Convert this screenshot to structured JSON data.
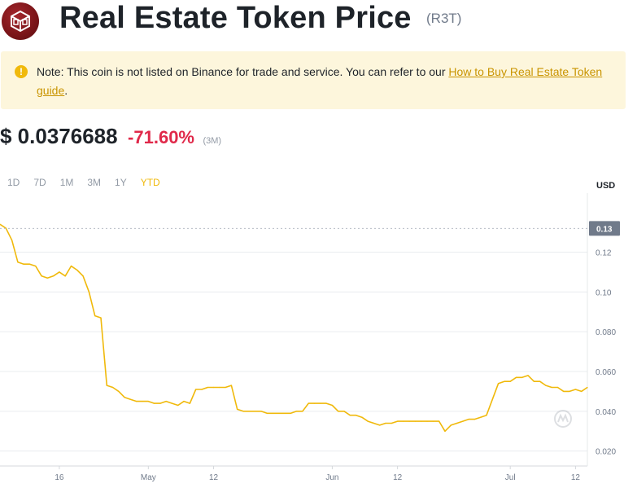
{
  "header": {
    "title": "Real Estate Token Price",
    "symbol": "(R3T)",
    "logo_icon": "r3t-cube-logo-icon"
  },
  "note": {
    "icon": "exclamation-circle-icon",
    "text": "Note: This coin is not listed on Binance for trade and service. You can refer to our ",
    "link_text": "How to Buy Real Estate Token guide",
    "suffix": "."
  },
  "price": {
    "value": "$ 0.0376688",
    "change": "-71.60%",
    "period": "(3M)"
  },
  "tabs": [
    {
      "label": "1D",
      "active": false
    },
    {
      "label": "7D",
      "active": false
    },
    {
      "label": "1M",
      "active": false
    },
    {
      "label": "3M",
      "active": false
    },
    {
      "label": "1Y",
      "active": false
    },
    {
      "label": "YTD",
      "active": true
    }
  ],
  "colors": {
    "line": "#f0b90b",
    "negative": "#e0294a",
    "accent": "#f0b90b",
    "grid": "#eaecef",
    "axis_text": "#707a8a"
  },
  "chart_data": {
    "type": "line",
    "currency_label": "USD",
    "current_price_label": "0.13",
    "y_ticks": [
      "0.12",
      "0.10",
      "0.080",
      "0.060",
      "0.040",
      "0.020"
    ],
    "y_tick_values": [
      0.12,
      0.1,
      0.08,
      0.06,
      0.04,
      0.02
    ],
    "ylim": [
      0.0125,
      0.1415
    ],
    "x_ticks": [
      "16",
      "May",
      "12",
      "Jun",
      "12",
      "Jul",
      "12"
    ],
    "x_tick_dates": [
      "2023-04-16",
      "2023-05-01",
      "2023-05-12",
      "2023-06-01",
      "2023-06-12",
      "2023-07-01",
      "2023-07-12"
    ],
    "xlim": [
      "2023-04-06",
      "2023-07-14"
    ],
    "grid": true,
    "watermark_icon": "coinmarketcap-watermark-icon",
    "series": [
      {
        "x": [
          "2023-04-06",
          "2023-04-07",
          "2023-04-08",
          "2023-04-09",
          "2023-04-10",
          "2023-04-11",
          "2023-04-12",
          "2023-04-13",
          "2023-04-14",
          "2023-04-15",
          "2023-04-16",
          "2023-04-17",
          "2023-04-18",
          "2023-04-19",
          "2023-04-20",
          "2023-04-21",
          "2023-04-22",
          "2023-04-23",
          "2023-04-24",
          "2023-04-25",
          "2023-04-26",
          "2023-04-27",
          "2023-04-28",
          "2023-04-29",
          "2023-04-30",
          "2023-05-01",
          "2023-05-02",
          "2023-05-03",
          "2023-05-04",
          "2023-05-05",
          "2023-05-06",
          "2023-05-07",
          "2023-05-08",
          "2023-05-09",
          "2023-05-10",
          "2023-05-11",
          "2023-05-12",
          "2023-05-13",
          "2023-05-14",
          "2023-05-15",
          "2023-05-16",
          "2023-05-17",
          "2023-05-18",
          "2023-05-19",
          "2023-05-20",
          "2023-05-21",
          "2023-05-22",
          "2023-05-23",
          "2023-05-24",
          "2023-05-25",
          "2023-05-26",
          "2023-05-27",
          "2023-05-28",
          "2023-05-29",
          "2023-05-30",
          "2023-05-31",
          "2023-06-01",
          "2023-06-02",
          "2023-06-03",
          "2023-06-04",
          "2023-06-05",
          "2023-06-06",
          "2023-06-07",
          "2023-06-08",
          "2023-06-09",
          "2023-06-10",
          "2023-06-11",
          "2023-06-12",
          "2023-06-13",
          "2023-06-14",
          "2023-06-15",
          "2023-06-16",
          "2023-06-17",
          "2023-06-18",
          "2023-06-19",
          "2023-06-20",
          "2023-06-21",
          "2023-06-22",
          "2023-06-23",
          "2023-06-24",
          "2023-06-25",
          "2023-06-26",
          "2023-06-27",
          "2023-06-28",
          "2023-06-29",
          "2023-06-30",
          "2023-07-01",
          "2023-07-02",
          "2023-07-03",
          "2023-07-04",
          "2023-07-05",
          "2023-07-06",
          "2023-07-07",
          "2023-07-08",
          "2023-07-09",
          "2023-07-10",
          "2023-07-11",
          "2023-07-12",
          "2023-07-13",
          "2023-07-14"
        ],
        "values": [
          0.134,
          0.132,
          0.126,
          0.115,
          0.114,
          0.114,
          0.113,
          0.108,
          0.107,
          0.108,
          0.11,
          0.108,
          0.113,
          0.111,
          0.108,
          0.1,
          0.088,
          0.087,
          0.053,
          0.052,
          0.05,
          0.047,
          0.046,
          0.045,
          0.045,
          0.045,
          0.044,
          0.044,
          0.045,
          0.044,
          0.043,
          0.045,
          0.044,
          0.051,
          0.051,
          0.052,
          0.052,
          0.052,
          0.052,
          0.053,
          0.041,
          0.04,
          0.04,
          0.04,
          0.04,
          0.039,
          0.039,
          0.039,
          0.039,
          0.039,
          0.04,
          0.04,
          0.044,
          0.044,
          0.044,
          0.044,
          0.043,
          0.04,
          0.04,
          0.038,
          0.038,
          0.037,
          0.035,
          0.034,
          0.033,
          0.034,
          0.034,
          0.035,
          0.035,
          0.035,
          0.035,
          0.035,
          0.035,
          0.035,
          0.035,
          0.03,
          0.033,
          0.034,
          0.035,
          0.036,
          0.036,
          0.037,
          0.038,
          0.046,
          0.054,
          0.055,
          0.055,
          0.057,
          0.057,
          0.058,
          0.055,
          0.055,
          0.053,
          0.052,
          0.052,
          0.05,
          0.05,
          0.051,
          0.05,
          0.052
        ]
      }
    ]
  }
}
